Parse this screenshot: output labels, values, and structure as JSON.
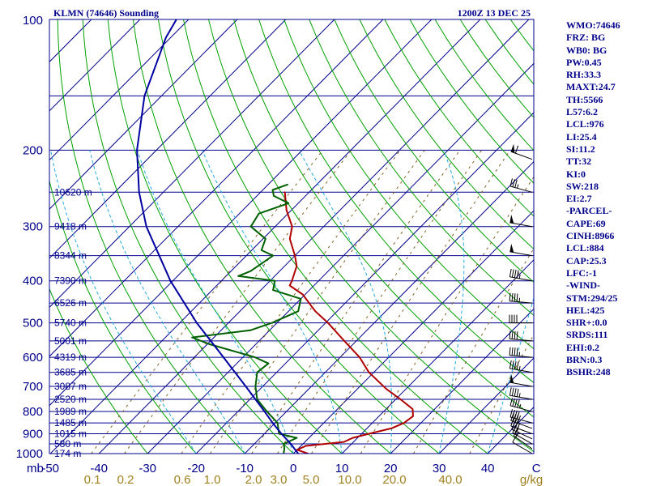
{
  "title": "KLMN (74646) Sounding",
  "timestamp": "1200Z 13 DEC 25",
  "indices": [
    "WMO:74646",
    "FRZ: BG",
    "WB0: BG",
    "PW:0.45",
    "RH:33.3",
    "MAXT:24.7",
    "TH:5566",
    "L57:6.2",
    "LCL:976",
    "LI:25.4",
    "SI:11.2",
    "TT:32",
    "KI:0",
    "SW:218",
    "EI:2.7",
    "-PARCEL-",
    "CAPE:69",
    "CINH:8966",
    "LCL:884",
    "CAP:25.3",
    "LFC:-1",
    "-WIND-",
    "STM:294/25",
    "HEL:425",
    "SHR+:0.0",
    "SRDS:111",
    "EHI:0.2",
    "BRN:0.3",
    "BSHR:248"
  ],
  "axis": {
    "pressure_label": "mb",
    "temperature_unit": "C",
    "mixing_ratio_unit": "g/kg"
  },
  "chart_data": {
    "type": "line",
    "pressure_range_mb": [
      1000,
      100
    ],
    "pressure_scale": "log",
    "temperature_range_c": [
      -50,
      50
    ],
    "pressure_ticks": [
      "100",
      "200",
      "300",
      "400",
      "500",
      "600",
      "700",
      "800",
      "900",
      "1000"
    ],
    "temperature_ticks": [
      "-50",
      "-40",
      "-30",
      "-20",
      "-10",
      "0",
      "10",
      "20",
      "30",
      "40",
      "C"
    ],
    "mixing_ratio_ticks": [
      "0.1",
      "0.2",
      "0.6",
      "1.0",
      "2.0",
      "3.0",
      "5.0",
      "10.0",
      "20.0",
      "40.0",
      "g/kg"
    ],
    "height_labels": [
      {
        "p": 1000,
        "label": "174 m"
      },
      {
        "p": 950,
        "label": "580 m"
      },
      {
        "p": 900,
        "label": "1015 m"
      },
      {
        "p": 850,
        "label": "1485 m"
      },
      {
        "p": 800,
        "label": "1989 m"
      },
      {
        "p": 750,
        "label": "2520 m"
      },
      {
        "p": 700,
        "label": "3087 m"
      },
      {
        "p": 650,
        "label": "3685 m"
      },
      {
        "p": 600,
        "label": "4319 m"
      },
      {
        "p": 550,
        "label": "5001 m"
      },
      {
        "p": 500,
        "label": "5740 m"
      },
      {
        "p": 450,
        "label": "6526 m"
      },
      {
        "p": 400,
        "label": "7390 m"
      },
      {
        "p": 350,
        "label": "8344 m"
      },
      {
        "p": 300,
        "label": "9418 m"
      },
      {
        "p": 250,
        "label": "10620 m"
      }
    ],
    "series": [
      {
        "name": "temperature",
        "color": "#b00000",
        "points": [
          [
            1000,
            3.0
          ],
          [
            980,
            0.0
          ],
          [
            960,
            1.0
          ],
          [
            940,
            8.0
          ],
          [
            920,
            9.0
          ],
          [
            900,
            11.5
          ],
          [
            875,
            15.0
          ],
          [
            850,
            16.5
          ],
          [
            820,
            17.0
          ],
          [
            790,
            15.5
          ],
          [
            750,
            11.0
          ],
          [
            710,
            6.0
          ],
          [
            650,
            -1.0
          ],
          [
            600,
            -6.0
          ],
          [
            550,
            -12.5
          ],
          [
            500,
            -19.5
          ],
          [
            470,
            -24.5
          ],
          [
            430,
            -30.5
          ],
          [
            410,
            -35.0
          ],
          [
            400,
            -35.5
          ],
          [
            370,
            -37.5
          ],
          [
            350,
            -40.0
          ],
          [
            320,
            -44.5
          ],
          [
            300,
            -46.5
          ],
          [
            275,
            -51.0
          ],
          [
            250,
            -55.0
          ]
        ]
      },
      {
        "name": "dewpoint",
        "color": "#006000",
        "points": [
          [
            1000,
            -2.0
          ],
          [
            970,
            -3.0
          ],
          [
            950,
            -4.0
          ],
          [
            920,
            -2.5
          ],
          [
            900,
            -7.0
          ],
          [
            880,
            -8.0
          ],
          [
            850,
            -9.5
          ],
          [
            800,
            -14.0
          ],
          [
            750,
            -18.5
          ],
          [
            700,
            -21.5
          ],
          [
            650,
            -24.0
          ],
          [
            620,
            -23.5
          ],
          [
            600,
            -27.5
          ],
          [
            560,
            -39.5
          ],
          [
            540,
            -44.5
          ],
          [
            520,
            -34.0
          ],
          [
            500,
            -31.0
          ],
          [
            470,
            -28.0
          ],
          [
            440,
            -30.0
          ],
          [
            420,
            -37.5
          ],
          [
            400,
            -39.0
          ],
          [
            390,
            -47.5
          ],
          [
            380,
            -46.0
          ],
          [
            370,
            -45.5
          ],
          [
            350,
            -44.5
          ],
          [
            340,
            -48.0
          ],
          [
            320,
            -49.5
          ],
          [
            300,
            -55.0
          ],
          [
            280,
            -56.0
          ],
          [
            265,
            -52.0
          ],
          [
            255,
            -56.5
          ],
          [
            247,
            -58.0
          ],
          [
            240,
            -56.0
          ]
        ]
      },
      {
        "name": "parcel",
        "color": "#0000a0",
        "points": [
          [
            1000,
            1.0
          ],
          [
            950,
            -2.5
          ],
          [
            900,
            -6.5
          ],
          [
            850,
            -10.5
          ],
          [
            800,
            -14.5
          ],
          [
            700,
            -23.5
          ],
          [
            600,
            -34.0
          ],
          [
            500,
            -46.5
          ],
          [
            400,
            -60.5
          ],
          [
            300,
            -76.5
          ],
          [
            250,
            -85.0
          ],
          [
            200,
            -94.0
          ],
          [
            150,
            -103.5
          ],
          [
            110,
            -111.0
          ],
          [
            100,
            -112.5
          ]
        ]
      }
    ],
    "wind_barbs": [
      {
        "p": 1000,
        "dir": 300,
        "spd": 10
      },
      {
        "p": 975,
        "dir": 305,
        "spd": 15
      },
      {
        "p": 950,
        "dir": 300,
        "spd": 25
      },
      {
        "p": 925,
        "dir": 295,
        "spd": 30
      },
      {
        "p": 900,
        "dir": 290,
        "spd": 35
      },
      {
        "p": 875,
        "dir": 290,
        "spd": 40
      },
      {
        "p": 850,
        "dir": 285,
        "spd": 40
      },
      {
        "p": 800,
        "dir": 285,
        "spd": 45
      },
      {
        "p": 750,
        "dir": 280,
        "spd": 45
      },
      {
        "p": 700,
        "dir": 280,
        "spd": 50
      },
      {
        "p": 650,
        "dir": 280,
        "spd": 45
      },
      {
        "p": 600,
        "dir": 275,
        "spd": 45
      },
      {
        "p": 550,
        "dir": 275,
        "spd": 40
      },
      {
        "p": 500,
        "dir": 270,
        "spd": 40
      },
      {
        "p": 450,
        "dir": 275,
        "spd": 45
      },
      {
        "p": 400,
        "dir": 280,
        "spd": 45
      },
      {
        "p": 350,
        "dir": 280,
        "spd": 50
      },
      {
        "p": 300,
        "dir": 280,
        "spd": 50
      },
      {
        "p": 250,
        "dir": 285,
        "spd": 35
      },
      {
        "p": 210,
        "dir": 290,
        "spd": 60
      }
    ]
  }
}
